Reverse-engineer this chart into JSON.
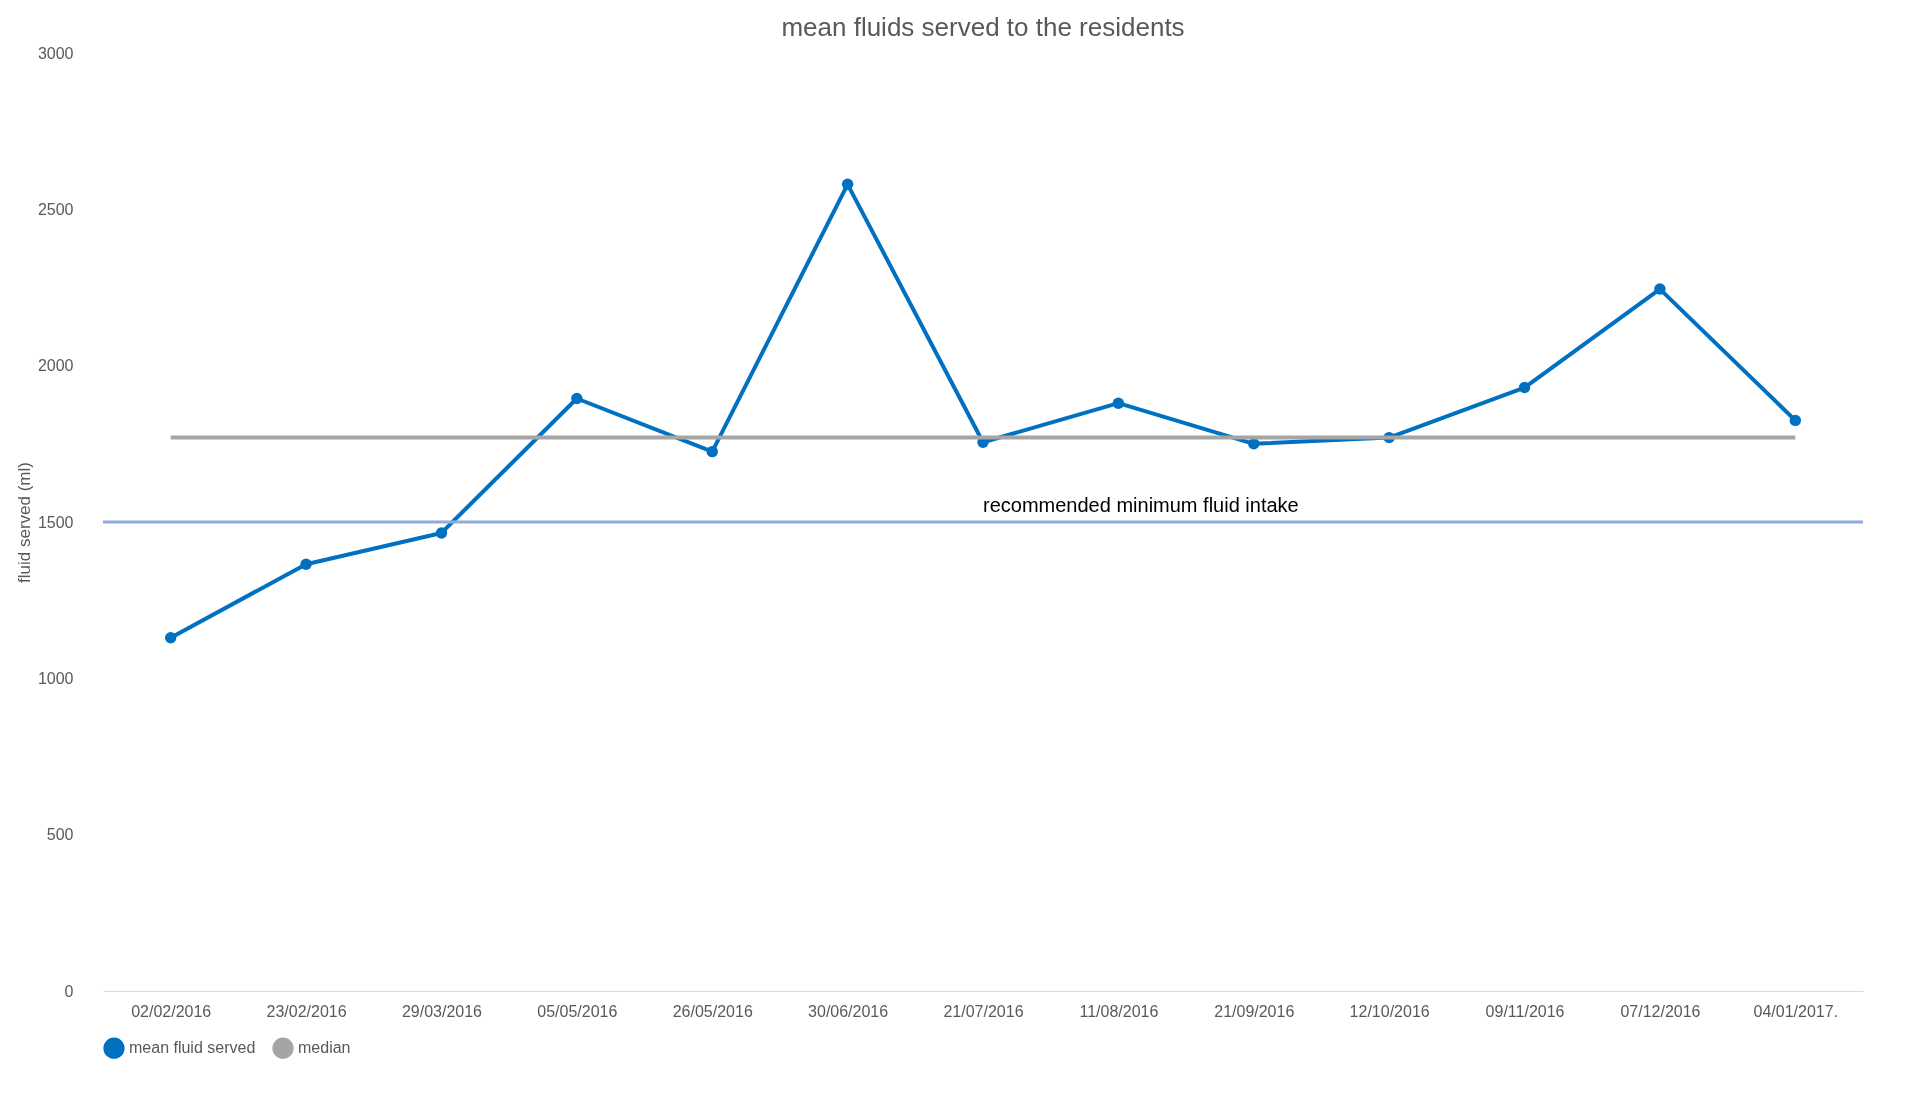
{
  "chart_data": {
    "type": "line",
    "title": "mean fluids served to the residents",
    "ylabel": "fluid served (ml)",
    "categories": [
      "02/02/2016",
      "23/02/2016",
      "29/03/2016",
      "05/05/2016",
      "26/05/2016",
      "30/06/2016",
      "21/07/2016",
      "11/08/2016",
      "21/09/2016",
      "12/10/2016",
      "09/11/2016",
      "07/12/2016",
      "04/01/2017."
    ],
    "series": [
      {
        "name": "mean fluid served",
        "color": "#0070c0",
        "marker": "circle",
        "values": [
          1130,
          1365,
          1465,
          1895,
          1725,
          2580,
          1755,
          1880,
          1750,
          1770,
          1930,
          2245,
          1825
        ]
      },
      {
        "name": "median",
        "color": "#a5a5a5",
        "marker": "none",
        "values": [
          1770,
          1770,
          1770,
          1770,
          1770,
          1770,
          1770,
          1770,
          1770,
          1770,
          1770,
          1770,
          1770
        ]
      }
    ],
    "ylim": [
      0,
      3000
    ],
    "yticks": [
      0,
      500,
      1000,
      1500,
      2000,
      2500,
      3000
    ],
    "grid": false,
    "legend": "bottom",
    "ref_lines": [
      {
        "axis": "y",
        "value": 1500,
        "label": "recommended minimum fluid intake",
        "color": "#8faadc"
      }
    ]
  }
}
